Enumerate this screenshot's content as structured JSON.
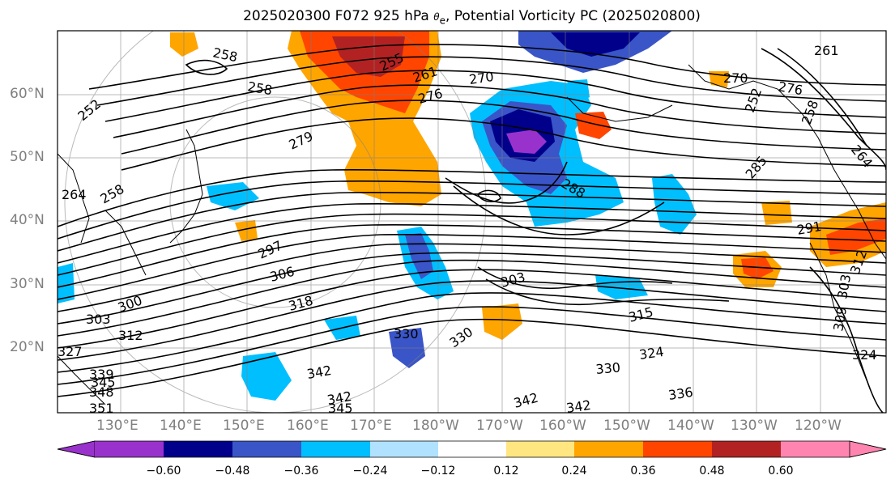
{
  "title": {
    "prefix": "2025020300 F072 925 hPa ",
    "theta": "θ",
    "theta_sub": "e",
    "suffix": ", Potential Vorticity PC (2025020800)"
  },
  "lat_labels": [
    "60°N",
    "50°N",
    "40°N",
    "30°N",
    "20°N"
  ],
  "lon_labels": [
    "130°E",
    "140°E",
    "150°E",
    "160°E",
    "170°E",
    "180°W",
    "170°W",
    "160°W",
    "150°W",
    "140°W",
    "130°W",
    "120°W"
  ],
  "contour_labels": [
    "258",
    "255",
    "261",
    "270",
    "276",
    "270",
    "261",
    "264",
    "258",
    "252",
    "258",
    "276",
    "279",
    "288",
    "285",
    "264",
    "258",
    "252",
    "297",
    "306",
    "303",
    "291",
    "318",
    "300",
    "303",
    "312",
    "315",
    "327",
    "309",
    "330",
    "330",
    "324",
    "339",
    "345",
    "348",
    "351",
    "342",
    "342",
    "330",
    "336",
    "342",
    "345",
    "342",
    "324",
    "312",
    "303"
  ],
  "colorbar": {
    "colors": [
      "#9932cc",
      "#00008b",
      "#3a55c7",
      "#00bfff",
      "#b0e2ff",
      "#ffffff",
      "#ffe680",
      "#ffa500",
      "#ff4500",
      "#b22222",
      "#ff85b0"
    ],
    "ticks": [
      "−0.60",
      "−0.48",
      "−0.36",
      "−0.24",
      "−0.12",
      "0.12",
      "0.24",
      "0.36",
      "0.48",
      "0.60"
    ]
  },
  "colors": {
    "grid": "#808080",
    "contour": "#000000",
    "coast": "#000000"
  }
}
